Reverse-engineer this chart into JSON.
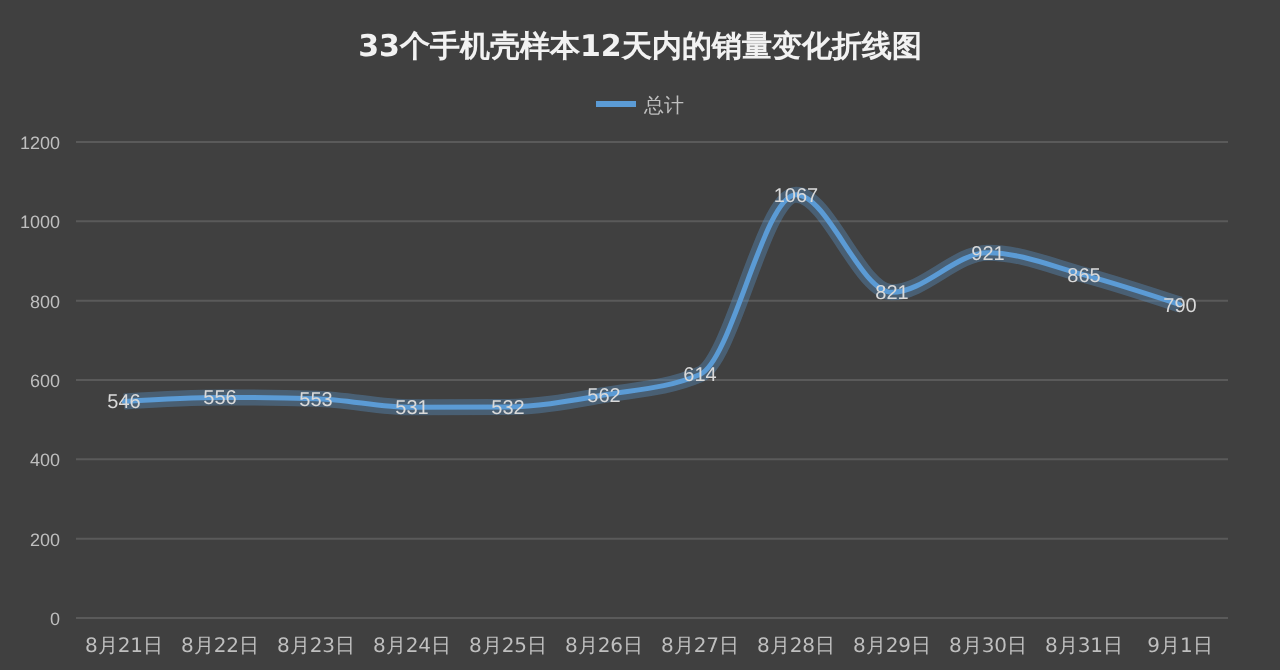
{
  "chart_data": {
    "type": "line",
    "title": "33个手机壳样本12天内的销量变化折线图",
    "categories": [
      "8月21日",
      "8月22日",
      "8月23日",
      "8月24日",
      "8月25日",
      "8月26日",
      "8月27日",
      "8月28日",
      "8月29日",
      "8月30日",
      "8月31日",
      "9月1日"
    ],
    "series": [
      {
        "name": "总计",
        "color": "#5b9bd5",
        "values": [
          546,
          556,
          553,
          531,
          532,
          562,
          614,
          1067,
          821,
          921,
          865,
          790
        ]
      }
    ],
    "ylim": [
      0,
      1200
    ],
    "yticks": [
      0,
      200,
      400,
      600,
      800,
      1000,
      1200
    ],
    "grid": "y",
    "legend": "top",
    "data_labels": true,
    "marker": "none",
    "line_style": "solid"
  }
}
